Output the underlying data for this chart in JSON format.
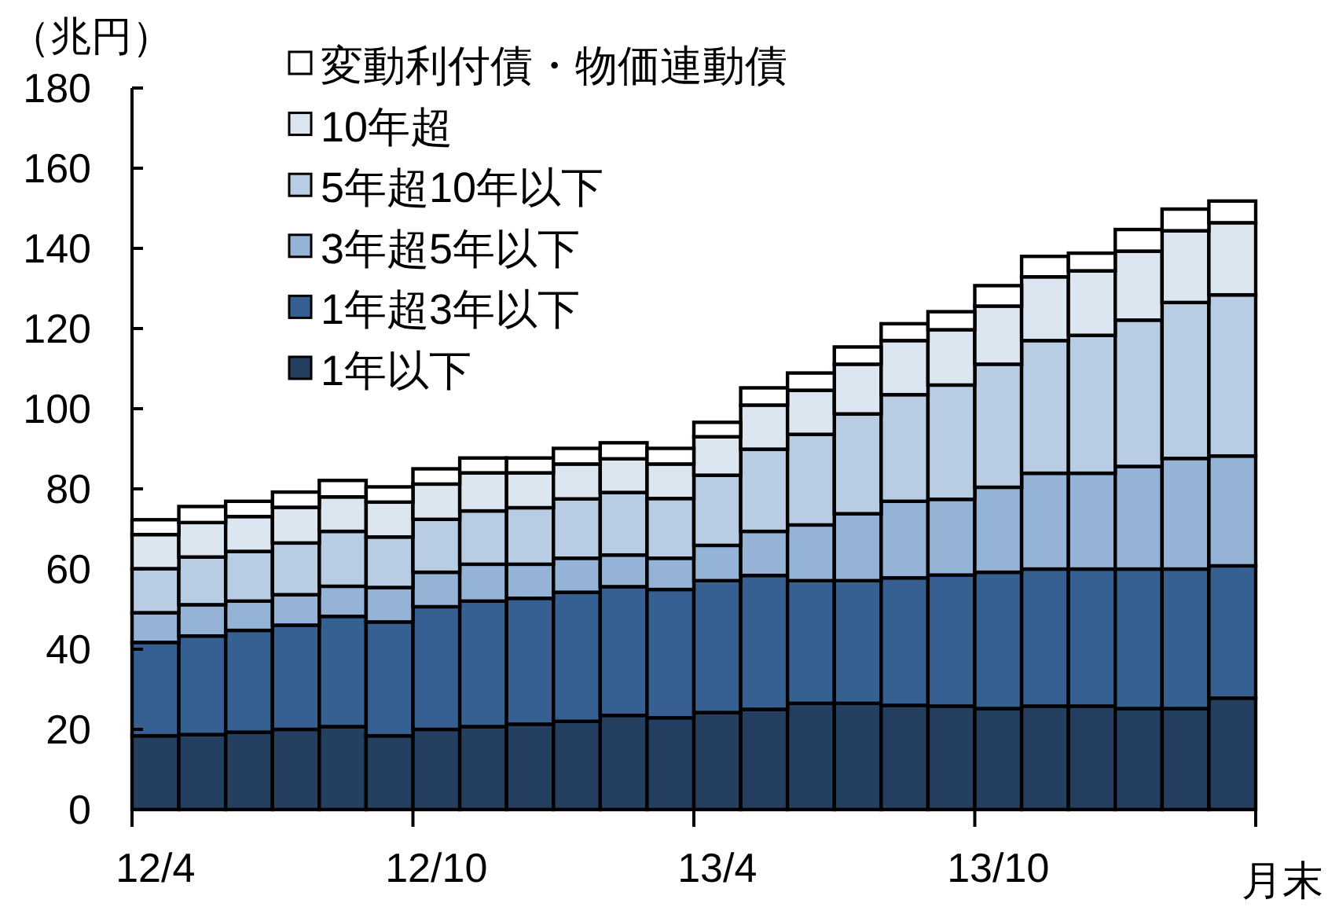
{
  "chart_data": {
    "type": "bar",
    "stacked": true,
    "ylabel": "（兆円）",
    "xlabel": "月末",
    "categories": [
      "12/4",
      null,
      null,
      null,
      null,
      null,
      "12/10",
      null,
      null,
      null,
      null,
      null,
      "13/4",
      null,
      null,
      null,
      null,
      null,
      "13/10",
      null,
      null,
      null,
      null,
      null
    ],
    "ylim": [
      0,
      180
    ],
    "yticks": [
      0,
      20,
      40,
      60,
      80,
      100,
      120,
      140,
      160,
      180
    ],
    "legend": "top left",
    "series": [
      {
        "name": "1年以下",
        "color": "#253f61",
        "values": [
          18.4,
          18.7,
          19.3,
          20.0,
          20.7,
          18.4,
          20.0,
          20.7,
          21.3,
          22.0,
          23.5,
          22.9,
          24.2,
          25.0,
          26.5,
          26.5,
          26.0,
          25.8,
          25.2,
          25.8,
          25.8,
          25.2,
          25.2,
          27.8
        ]
      },
      {
        "name": "1年超3年以下",
        "color": "#366092",
        "values": [
          23.3,
          24.6,
          25.4,
          26.0,
          27.5,
          28.4,
          30.6,
          31.3,
          31.4,
          32.2,
          32.1,
          32.0,
          32.9,
          33.4,
          30.6,
          30.6,
          31.8,
          32.7,
          34.0,
          34.2,
          34.2,
          34.8,
          34.8,
          33.0
        ]
      },
      {
        "name": "3年超5年以下",
        "color": "#95b3d7",
        "values": [
          7.4,
          7.8,
          7.3,
          7.6,
          7.5,
          8.6,
          8.6,
          9.2,
          8.5,
          8.5,
          7.9,
          7.8,
          8.8,
          11.0,
          13.9,
          16.7,
          19.1,
          18.9,
          21.2,
          23.9,
          23.9,
          25.6,
          27.6,
          27.4
        ]
      },
      {
        "name": "5年超10年以下",
        "color": "#b8cce4",
        "values": [
          11.0,
          11.9,
          12.4,
          12.9,
          13.7,
          12.6,
          13.2,
          13.3,
          14.1,
          14.8,
          15.6,
          14.9,
          17.5,
          20.5,
          22.6,
          24.9,
          26.6,
          28.5,
          30.7,
          33.1,
          34.4,
          36.5,
          38.9,
          40.2
        ]
      },
      {
        "name": "10年超",
        "color": "#dce6f1",
        "values": [
          8.5,
          8.6,
          8.7,
          8.9,
          8.6,
          8.7,
          8.8,
          9.5,
          8.7,
          8.7,
          8.4,
          8.6,
          9.6,
          11.0,
          11.0,
          12.4,
          13.5,
          13.8,
          14.5,
          15.9,
          16.1,
          17.2,
          17.9,
          18.0
        ]
      },
      {
        "name": "変動利付債・物価連動債",
        "color": "#ffffff",
        "values": [
          3.7,
          4.0,
          3.8,
          3.8,
          4.1,
          3.8,
          3.8,
          3.7,
          3.7,
          3.9,
          4.0,
          3.9,
          3.6,
          4.3,
          4.3,
          4.3,
          4.2,
          4.5,
          5.1,
          5.1,
          4.4,
          5.4,
          5.4,
          5.4
        ]
      }
    ]
  }
}
